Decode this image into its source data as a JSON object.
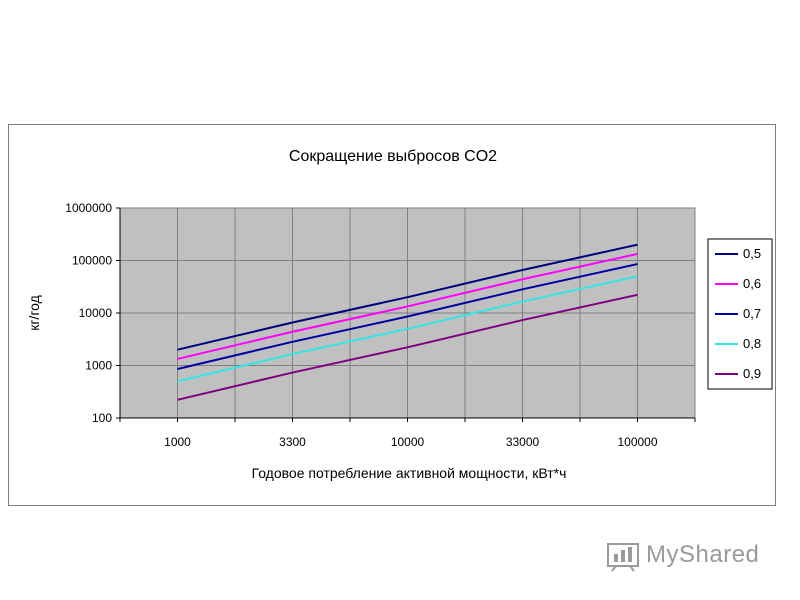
{
  "chart_data": {
    "type": "line",
    "title": "Сокращение выбросов CO2",
    "xlabel": "Годовое потребление активной мощности, кВт*ч",
    "ylabel": "кг/год",
    "y_scale": "log",
    "ylim": [
      100,
      1000000
    ],
    "y_ticks": [
      "100",
      "1000",
      "10000",
      "100000",
      "1000000"
    ],
    "categories": [
      "1000",
      "3300",
      "10000",
      "33000",
      "100000"
    ],
    "x": [
      1000,
      3300,
      10000,
      33000,
      100000
    ],
    "grid": true,
    "legend_position": "right",
    "series": [
      {
        "name": "0,5",
        "color": "#000080",
        "values": [
          2000,
          6600,
          20000,
          66000,
          200000
        ]
      },
      {
        "name": "0,6",
        "color": "#FF00FF",
        "values": [
          1333,
          4400,
          13333,
          44000,
          133333
        ]
      },
      {
        "name": "0,7",
        "color": "#0000A0",
        "values": [
          857,
          2829,
          8571,
          28286,
          85714
        ]
      },
      {
        "name": "0,8",
        "color": "#33E6E6",
        "values": [
          500,
          1650,
          5000,
          16500,
          50000
        ]
      },
      {
        "name": "0,9",
        "color": "#800080",
        "values": [
          222,
          733,
          2222,
          7333,
          22222
        ]
      }
    ]
  },
  "watermark": {
    "text": "MyShared",
    "icon": "myshared-logo-icon"
  }
}
